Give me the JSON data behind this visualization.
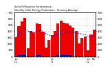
{
  "production": [
    310,
    480,
    560,
    610,
    130,
    400,
    380,
    520,
    510,
    390,
    140,
    260,
    340,
    410,
    530,
    570,
    540,
    520,
    490,
    460,
    410,
    210,
    300,
    320,
    100,
    350,
    430
  ],
  "running_avg": [
    310,
    360,
    420,
    460,
    400,
    388,
    381,
    399,
    411,
    401,
    360,
    338,
    331,
    338,
    350,
    368,
    382,
    388,
    388,
    385,
    381,
    365,
    358,
    350,
    312,
    318,
    327
  ],
  "small_vals": [
    12,
    18,
    22,
    28,
    8,
    15,
    16,
    20,
    18,
    14,
    8,
    10,
    14,
    16,
    20,
    26,
    22,
    20,
    18,
    16,
    14,
    8,
    12,
    13,
    6,
    13,
    16
  ],
  "bar_color": "#ee0000",
  "avg_color": "#0000ee",
  "small_color": "#0000cc",
  "bg_color": "#ffffff",
  "grid_color": "#aaaaaa",
  "title1": "Solar PV/Inverter Performance",
  "title2": "Monthly Solar Energy Production   Running Average",
  "ylim": [
    0,
    700
  ],
  "yticks": [
    0,
    100,
    200,
    300,
    400,
    500,
    600,
    700
  ],
  "n_bars": 27
}
